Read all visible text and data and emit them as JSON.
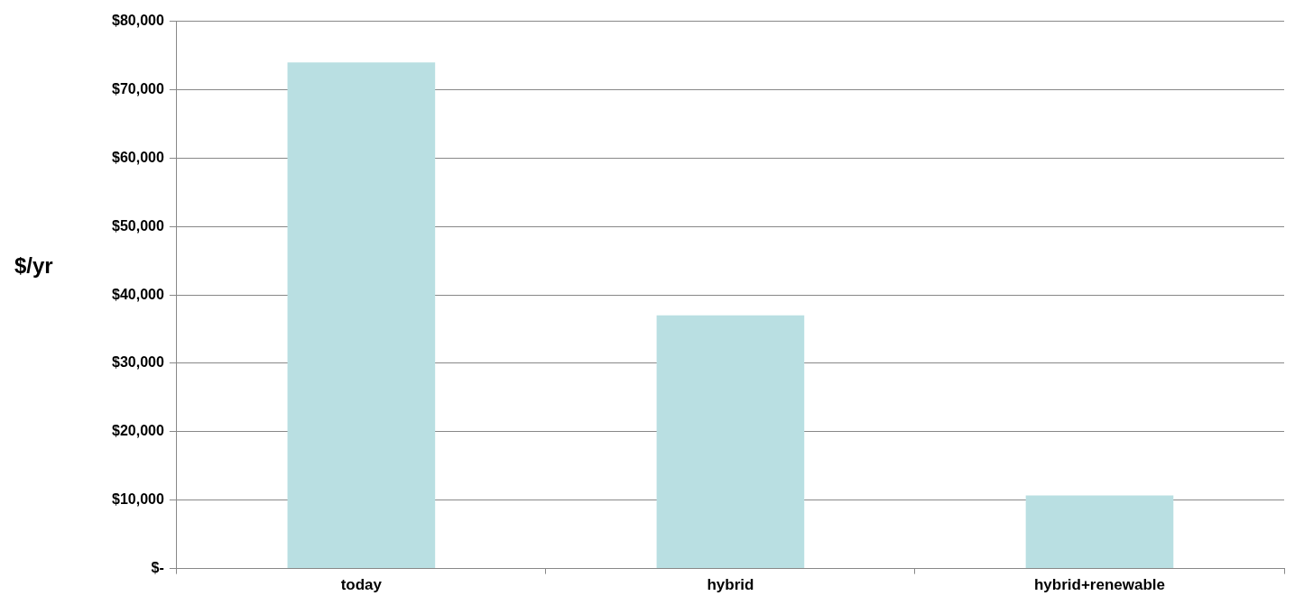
{
  "chart_data": {
    "type": "bar",
    "ylabel": "$/yr",
    "categories": [
      "today",
      "hybrid",
      "hybrid+renewable"
    ],
    "values": [
      74000,
      37000,
      10700
    ],
    "color": "#b9dfe2",
    "ylim": [
      0,
      80000
    ],
    "yticks": [
      {
        "value": 0,
        "label": "$-"
      },
      {
        "value": 10000,
        "label": "$10,000"
      },
      {
        "value": 20000,
        "label": "$20,000"
      },
      {
        "value": 30000,
        "label": "$30,000"
      },
      {
        "value": 40000,
        "label": "$40,000"
      },
      {
        "value": 50000,
        "label": "$50,000"
      },
      {
        "value": 60000,
        "label": "$60,000"
      },
      {
        "value": 70000,
        "label": "$70,000"
      },
      {
        "value": 80000,
        "label": "$80,000"
      }
    ],
    "grid": "y",
    "legend": false
  }
}
